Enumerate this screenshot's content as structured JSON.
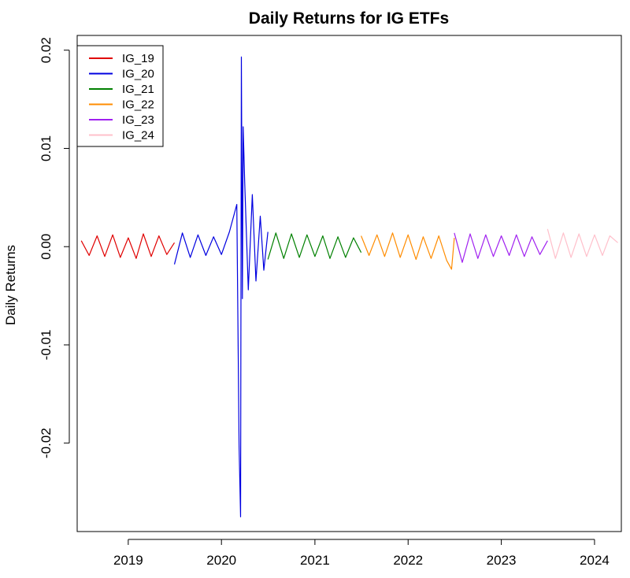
{
  "chart_data": {
    "type": "line",
    "title": "Daily Returns for IG ETFs",
    "xlabel": "",
    "ylabel": "Daily Returns",
    "x_axis_type": "date",
    "xlim": [
      "2018-06-15",
      "2024-04-15"
    ],
    "ylim": [
      -0.029,
      0.0215
    ],
    "x_ticks": [
      {
        "value": "2019-01-01",
        "label": "2019"
      },
      {
        "value": "2020-01-01",
        "label": "2020"
      },
      {
        "value": "2021-01-01",
        "label": "2021"
      },
      {
        "value": "2022-01-01",
        "label": "2022"
      },
      {
        "value": "2023-01-01",
        "label": "2023"
      },
      {
        "value": "2024-01-01",
        "label": "2024"
      }
    ],
    "y_ticks": [
      {
        "value": -0.02,
        "label": "-0.02"
      },
      {
        "value": -0.01,
        "label": "-0.01"
      },
      {
        "value": 0.0,
        "label": "0.00"
      },
      {
        "value": 0.01,
        "label": "0.01"
      },
      {
        "value": 0.02,
        "label": "0.02"
      }
    ],
    "grid": false,
    "legend_position": "top-left",
    "series": [
      {
        "name": "IG_19",
        "color": "#e00000",
        "x": [
          "2018-07-01",
          "2018-08-01",
          "2018-09-01",
          "2018-10-01",
          "2018-11-01",
          "2018-12-01",
          "2019-01-01",
          "2019-02-01",
          "2019-03-01",
          "2019-04-01",
          "2019-05-01",
          "2019-06-01",
          "2019-07-01"
        ],
        "y": [
          0.0006,
          -0.0009,
          0.0011,
          -0.001,
          0.0012,
          -0.0011,
          0.0009,
          -0.0012,
          0.0013,
          -0.001,
          0.0011,
          -0.0008,
          0.0004
        ]
      },
      {
        "name": "IG_20",
        "color": "#0000e0",
        "x": [
          "2019-07-01",
          "2019-08-01",
          "2019-09-01",
          "2019-10-01",
          "2019-11-01",
          "2019-12-01",
          "2020-01-01",
          "2020-02-01",
          "2020-03-01",
          "2020-03-10",
          "2020-03-16",
          "2020-03-19",
          "2020-03-23",
          "2020-03-26",
          "2020-04-01",
          "2020-04-15",
          "2020-05-01",
          "2020-05-15",
          "2020-06-01",
          "2020-06-15",
          "2020-07-01"
        ],
        "y": [
          -0.0018,
          0.0014,
          -0.0011,
          0.0012,
          -0.0009,
          0.001,
          -0.0008,
          0.0015,
          0.0043,
          -0.0203,
          -0.0275,
          0.0193,
          -0.0053,
          0.0122,
          0.0066,
          -0.0044,
          0.0053,
          -0.0035,
          0.0031,
          -0.0024,
          0.0015
        ]
      },
      {
        "name": "IG_21",
        "color": "#008000",
        "x": [
          "2020-07-01",
          "2020-08-01",
          "2020-09-01",
          "2020-10-01",
          "2020-11-01",
          "2020-12-01",
          "2021-01-01",
          "2021-02-01",
          "2021-03-01",
          "2021-04-01",
          "2021-05-01",
          "2021-06-01",
          "2021-07-01"
        ],
        "y": [
          -0.0013,
          0.0014,
          -0.0012,
          0.0013,
          -0.0011,
          0.0012,
          -0.001,
          0.0011,
          -0.0012,
          0.001,
          -0.0011,
          0.0009,
          -0.0006
        ]
      },
      {
        "name": "IG_22",
        "color": "#ff8c00",
        "x": [
          "2021-07-01",
          "2021-08-01",
          "2021-09-01",
          "2021-10-01",
          "2021-11-01",
          "2021-12-01",
          "2022-01-01",
          "2022-02-01",
          "2022-03-01",
          "2022-04-01",
          "2022-05-01",
          "2022-06-01",
          "2022-06-20",
          "2022-07-01"
        ],
        "y": [
          0.0011,
          -0.0009,
          0.0012,
          -0.001,
          0.0014,
          -0.0011,
          0.0012,
          -0.0013,
          0.001,
          -0.0012,
          0.0011,
          -0.0014,
          -0.0023,
          0.0009
        ]
      },
      {
        "name": "IG_23",
        "color": "#a020f0",
        "x": [
          "2022-07-01",
          "2022-08-01",
          "2022-09-01",
          "2022-10-01",
          "2022-11-01",
          "2022-12-01",
          "2023-01-01",
          "2023-02-01",
          "2023-03-01",
          "2023-04-01",
          "2023-05-01",
          "2023-06-01",
          "2023-07-01"
        ],
        "y": [
          0.0014,
          -0.0016,
          0.0013,
          -0.0012,
          0.0012,
          -0.001,
          0.0011,
          -0.0009,
          0.0012,
          -0.001,
          0.001,
          -0.0008,
          0.0006
        ]
      },
      {
        "name": "IG_24",
        "color": "#ffc0cb",
        "x": [
          "2023-07-01",
          "2023-08-01",
          "2023-09-01",
          "2023-10-01",
          "2023-11-01",
          "2023-12-01",
          "2024-01-01",
          "2024-02-01",
          "2024-03-01",
          "2024-04-01"
        ],
        "y": [
          0.0018,
          -0.0012,
          0.0014,
          -0.0011,
          0.0013,
          -0.001,
          0.0012,
          -0.0009,
          0.0011,
          0.0004
        ]
      }
    ]
  }
}
